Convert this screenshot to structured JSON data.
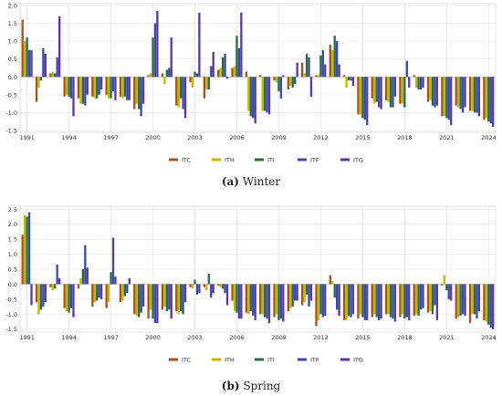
{
  "panels": [
    {
      "caption_letter": "(a)",
      "caption_text": "Winter"
    },
    {
      "caption_letter": "(b)",
      "caption_text": "Spring"
    }
  ],
  "chart_data": [
    {
      "type": "bar",
      "title": "",
      "xlabel": "",
      "ylabel": "",
      "ylim": [
        -1.55,
        2.05
      ],
      "yticks": [
        -1.5,
        -1.0,
        -0.5,
        0.0,
        0.5,
        1.0,
        1.5,
        2.0
      ],
      "ytick_labels": [
        "-1.5",
        "-1.0",
        "-0.5",
        "0.0",
        "0.5",
        "1.0",
        "1.5",
        "2.0"
      ],
      "xtick_labels": [
        "1991",
        "1994",
        "1997",
        "2000",
        "2003",
        "2006",
        "2009",
        "2012",
        "2015",
        "2018",
        "2021",
        "2024"
      ],
      "grid": true,
      "legend_position": "bottom",
      "colors": [
        "#a0522d",
        "#c8b400",
        "#2e6b3c",
        "#3b4ba0",
        "#5b3a9e"
      ],
      "categories": [
        "1991",
        "1992",
        "1993",
        "1994",
        "1995",
        "1996",
        "1997",
        "1998",
        "1999",
        "2000",
        "2001",
        "2002",
        "2003",
        "2004",
        "2005",
        "2006",
        "2007",
        "2008",
        "2009",
        "2010",
        "2011",
        "2012",
        "2013",
        "2014",
        "2015",
        "2016",
        "2017",
        "2018",
        "2019",
        "2020",
        "2021",
        "2022",
        "2023",
        "2024"
      ],
      "series": [
        {
          "name": "ITC",
          "values": [
            1.6,
            -0.7,
            0.1,
            -0.55,
            -0.6,
            -0.55,
            -0.5,
            -0.55,
            -0.9,
            0.05,
            0.1,
            -0.8,
            -0.15,
            -0.6,
            0.2,
            0.25,
            0.15,
            0.05,
            -0.1,
            -0.35,
            0.4,
            0.05,
            0.9,
            0.05,
            -1.05,
            -0.6,
            -0.65,
            -0.75,
            0.05,
            -0.7,
            -1.1,
            -0.8,
            -0.95,
            -1.2
          ]
        },
        {
          "name": "ITH",
          "values": [
            1.0,
            -0.3,
            0.15,
            -0.5,
            -0.75,
            -0.6,
            -0.6,
            -0.6,
            -0.75,
            0.1,
            -0.2,
            -0.85,
            -0.3,
            -0.35,
            0.25,
            0.3,
            -0.95,
            -0.95,
            -0.15,
            -0.25,
            0.1,
            0.05,
            0.75,
            -0.3,
            -1.05,
            -0.75,
            -0.7,
            -0.75,
            -0.3,
            -0.65,
            -1.1,
            -0.85,
            -0.95,
            -1.15
          ]
        },
        {
          "name": "ITI",
          "values": [
            1.1,
            -0.1,
            0.1,
            -0.55,
            -0.75,
            -0.6,
            -0.6,
            -0.55,
            -0.9,
            1.1,
            0.2,
            -0.6,
            0.15,
            -0.35,
            0.55,
            1.15,
            -1.1,
            -0.95,
            -0.4,
            -0.3,
            0.65,
            0.6,
            1.15,
            -0.1,
            -1.15,
            -0.7,
            -0.85,
            -0.85,
            -0.35,
            -0.8,
            -1.15,
            -0.9,
            -1.0,
            -1.25
          ]
        },
        {
          "name": "ITF",
          "values": [
            0.75,
            0.8,
            0.55,
            -0.6,
            -0.8,
            -0.5,
            -0.4,
            -0.65,
            -1.1,
            1.5,
            0.25,
            -0.9,
            0.1,
            0.3,
            0.65,
            0.8,
            -1.15,
            -1.0,
            -0.6,
            -0.2,
            0.55,
            0.75,
            1.0,
            -0.1,
            -1.2,
            -0.85,
            -0.85,
            0.45,
            -0.35,
            -0.85,
            -1.2,
            -1.0,
            -1.0,
            -1.3
          ]
        },
        {
          "name": "ITG",
          "values": [
            0.75,
            0.65,
            1.7,
            -1.1,
            -0.5,
            -0.35,
            -0.65,
            -0.65,
            -0.75,
            1.85,
            1.1,
            -1.15,
            1.8,
            0.7,
            -0.05,
            1.8,
            -1.3,
            -1.05,
            0.05,
            0.4,
            -0.55,
            0.35,
            0.35,
            -0.25,
            -1.35,
            -0.9,
            -0.55,
            -0.3,
            -0.3,
            -0.8,
            -1.35,
            -0.85,
            -1.1,
            -1.4
          ]
        }
      ]
    },
    {
      "type": "bar",
      "title": "",
      "xlabel": "",
      "ylabel": "",
      "ylim": [
        -1.6,
        2.6
      ],
      "yticks": [
        -1.5,
        -1.0,
        -0.5,
        0.0,
        0.5,
        1.0,
        1.5,
        2.0,
        2.5
      ],
      "ytick_labels": [
        "-1.5",
        "-1.0",
        "-0.5",
        "0.0",
        "0.5",
        "1.0",
        "1.5",
        "2.0",
        "2.5"
      ],
      "xtick_labels": [
        "1991",
        "1994",
        "1997",
        "2000",
        "2003",
        "2006",
        "2009",
        "2012",
        "2015",
        "2018",
        "2021",
        "2024"
      ],
      "grid": true,
      "legend_position": "bottom",
      "colors": [
        "#a0522d",
        "#c8b400",
        "#2e6b3c",
        "#3b4ba0",
        "#5b3a9e"
      ],
      "categories": [
        "1991",
        "1992",
        "1993",
        "1994",
        "1995",
        "1996",
        "1997",
        "1998",
        "1999",
        "2000",
        "2001",
        "2002",
        "2003",
        "2004",
        "2005",
        "2006",
        "2007",
        "2008",
        "2009",
        "2010",
        "2011",
        "2012",
        "2013",
        "2014",
        "2015",
        "2016",
        "2017",
        "2018",
        "2019",
        "2020",
        "2021",
        "2022",
        "2023",
        "2024"
      ],
      "series": [
        {
          "name": "ITC",
          "values": [
            1.65,
            -0.6,
            -0.1,
            -0.8,
            -0.15,
            -0.75,
            -0.8,
            -0.6,
            -1.0,
            -1.15,
            -0.85,
            -0.9,
            -0.1,
            -0.1,
            -0.05,
            -0.55,
            -0.95,
            -1.0,
            -1.1,
            -0.9,
            -0.7,
            -1.4,
            0.3,
            -1.2,
            -1.15,
            -1.1,
            -1.0,
            -1.1,
            -1.05,
            -0.95,
            -0.05,
            -1.15,
            -1.3,
            -1.2
          ]
        },
        {
          "name": "ITH",
          "values": [
            2.3,
            -1.0,
            -0.2,
            -0.9,
            0.2,
            -0.6,
            -0.6,
            -0.55,
            -1.05,
            -0.85,
            -0.75,
            -1.0,
            -0.15,
            -0.2,
            -0.1,
            -0.9,
            -1.0,
            -1.0,
            -1.0,
            -0.8,
            -0.6,
            -1.2,
            0.1,
            -1.2,
            -1.0,
            -1.0,
            -1.0,
            -1.0,
            -1.0,
            -0.9,
            0.3,
            -1.1,
            -1.0,
            -1.25
          ]
        },
        {
          "name": "ITI",
          "values": [
            2.25,
            -0.85,
            -0.15,
            -0.95,
            0.5,
            -0.55,
            0.4,
            -0.4,
            -1.1,
            -1.15,
            -0.9,
            -0.9,
            0.15,
            0.35,
            -0.15,
            -0.95,
            -0.9,
            -1.1,
            -1.2,
            -0.75,
            -0.35,
            -1.0,
            -0.45,
            -1.05,
            -1.1,
            -1.1,
            -1.1,
            -1.15,
            -1.05,
            -1.0,
            -0.2,
            -1.05,
            -1.0,
            -1.35
          ]
        },
        {
          "name": "ITF",
          "values": [
            2.4,
            -0.75,
            0.65,
            -0.8,
            1.3,
            -0.45,
            1.55,
            -0.3,
            -0.95,
            -1.3,
            -0.85,
            -1.0,
            -0.35,
            -0.45,
            -0.3,
            -1.15,
            -1.05,
            -1.15,
            -1.15,
            -0.55,
            -0.75,
            -1.1,
            -0.85,
            -1.1,
            -1.2,
            -1.2,
            -1.15,
            -1.1,
            -0.85,
            -0.7,
            -0.5,
            -1.0,
            -1.15,
            -1.45
          ]
        },
        {
          "name": "ITG",
          "values": [
            -0.7,
            -0.6,
            0.2,
            -1.1,
            0.55,
            -0.5,
            0.25,
            0.2,
            -0.75,
            -1.3,
            -1.15,
            -0.6,
            -0.3,
            -0.3,
            -0.7,
            -1.15,
            -1.2,
            -1.3,
            -1.25,
            -0.55,
            -0.55,
            -1.05,
            -1.05,
            -1.0,
            -1.2,
            -1.15,
            -1.25,
            -1.2,
            -0.8,
            -1.2,
            -0.55,
            -1.05,
            -0.9,
            -1.5
          ]
        }
      ]
    }
  ]
}
